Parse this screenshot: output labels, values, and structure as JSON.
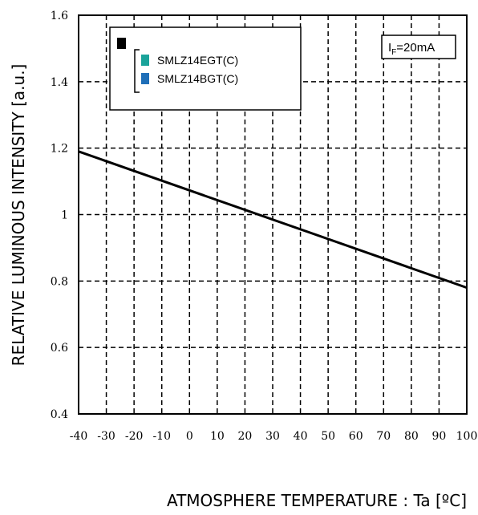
{
  "chart_data": {
    "type": "line",
    "title": "",
    "xlabel": "ATMOSPHERE TEMPERATURE : Ta [ºC]",
    "ylabel": "RELATIVE LUMINOUS INTENSITY [a.u.]",
    "xlim": [
      -40,
      100
    ],
    "ylim": [
      0.4,
      1.6
    ],
    "x_ticks": [
      "-40",
      "-30",
      "-20",
      "-10",
      "0",
      "10",
      "20",
      "30",
      "40",
      "50",
      "60",
      "70",
      "80",
      "90",
      "100"
    ],
    "y_ticks": [
      "0.4",
      "0.6",
      "0.8",
      "1",
      "1.2",
      "1.4",
      "1.6"
    ],
    "grid": true,
    "grid_style": "dashed",
    "series": [
      {
        "x": [
          -40,
          100
        ],
        "y": [
          1.19,
          0.78
        ],
        "color": "#000000"
      }
    ],
    "legend": {
      "placement": "top-left",
      "marker_color": "#000000",
      "entries": [
        {
          "label": "SMLZ14EGT(C)",
          "color": "#1aa39a"
        },
        {
          "label": "SMLZ14BGT(C)",
          "color": "#1f6fb8"
        }
      ]
    },
    "annotation": {
      "prefix": "I",
      "subscript": "F",
      "value": "=20mA",
      "placement": "top-right"
    }
  }
}
